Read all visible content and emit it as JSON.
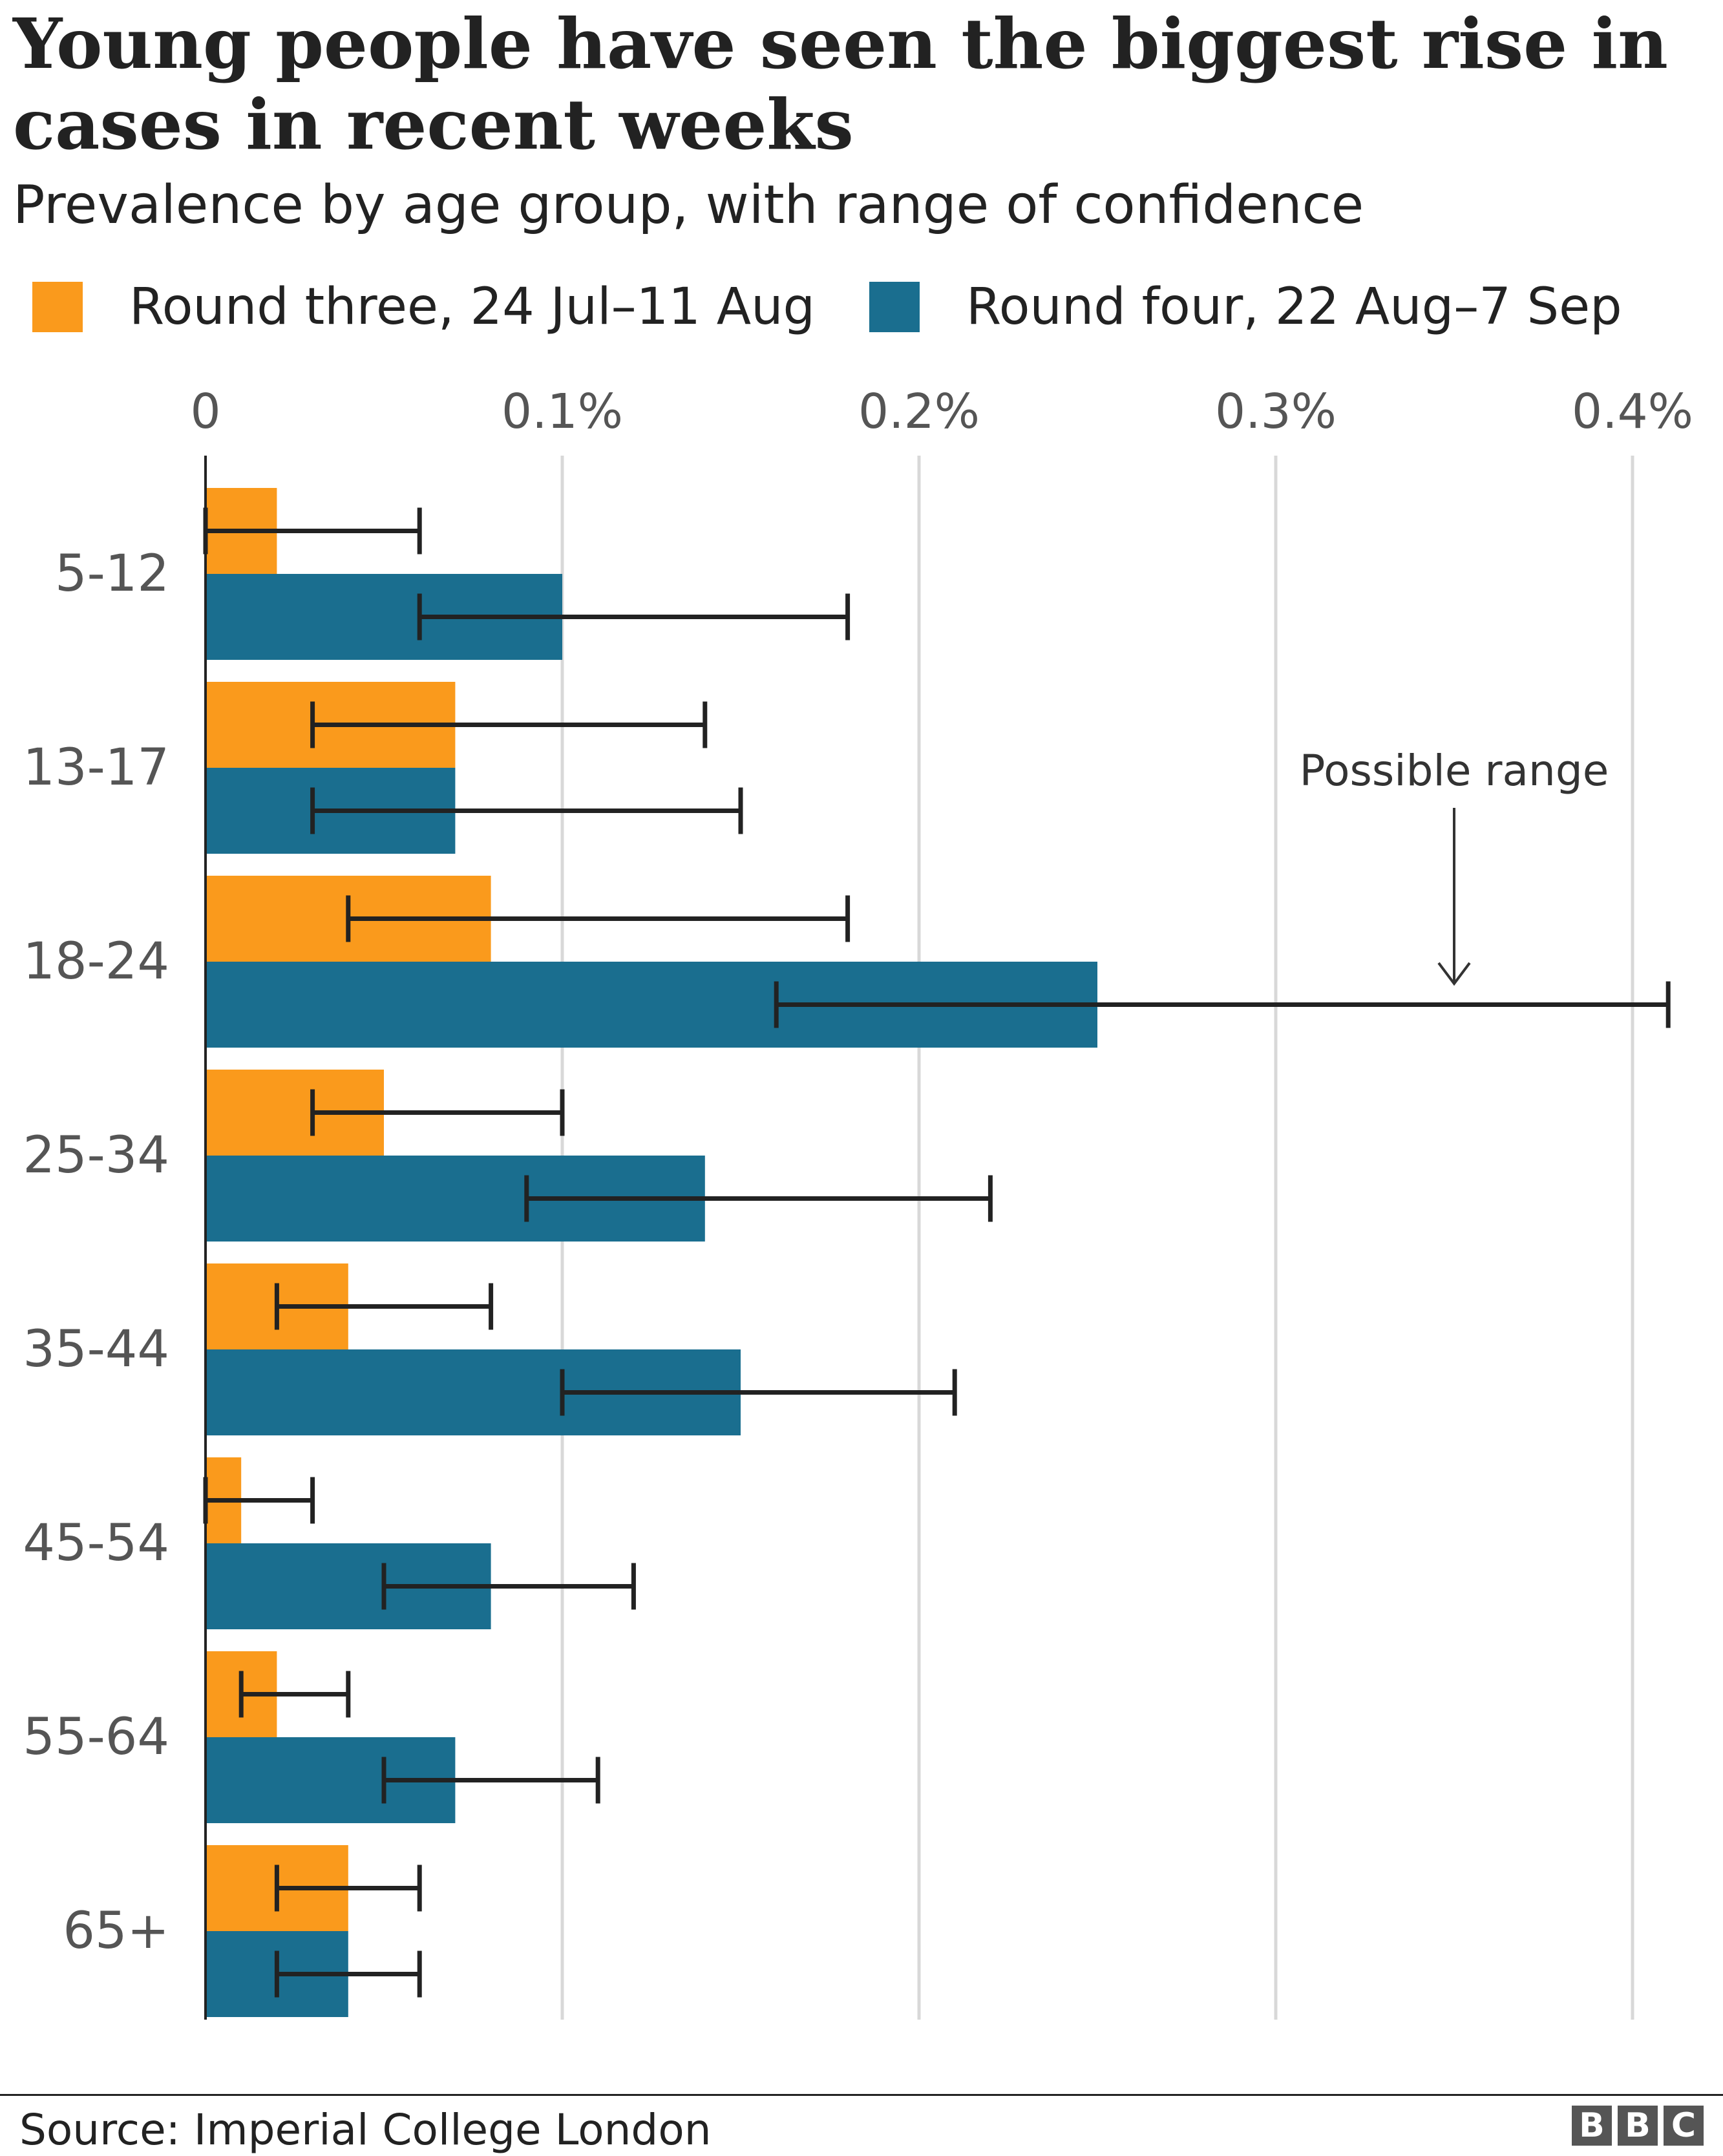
{
  "title": "Young people have seen the biggest rise in cases in recent weeks",
  "subtitle": "Prevalence by age group, with range of confidence",
  "legend": {
    "round_three": "Round three, 24 Jul–11 Aug",
    "round_four": "Round four, 22 Aug–7 Sep"
  },
  "colors": {
    "round_three": "#fa9a1c",
    "round_four": "#1a6e8f",
    "error_bar": "#222222",
    "grid": "#d8d8d8",
    "text": "#222222",
    "axis_text": "#555555"
  },
  "annotation": "Possible range",
  "source": "Source: Imperial College London",
  "logo": "BBC",
  "chart_data": {
    "type": "bar",
    "orientation": "horizontal",
    "title": "Young people have seen the biggest rise in cases in recent weeks",
    "subtitle": "Prevalence by age group, with range of confidence",
    "xlim": [
      0,
      0.4
    ],
    "xticks": [
      0,
      0.1,
      0.2,
      0.3,
      0.4
    ],
    "xtick_labels": [
      "0",
      "0.1%",
      "0.2%",
      "0.3%",
      "0.4%"
    ],
    "grid": true,
    "legend_position": "top",
    "categories": [
      "5-12",
      "13-17",
      "18-24",
      "25-34",
      "35-44",
      "45-54",
      "55-64",
      "65+"
    ],
    "series": [
      {
        "name": "Round three, 24 Jul–11 Aug",
        "values": [
          0.02,
          0.07,
          0.08,
          0.05,
          0.04,
          0.01,
          0.02,
          0.04
        ],
        "ci_low": [
          0.0,
          0.03,
          0.04,
          0.03,
          0.02,
          0.0,
          0.01,
          0.02
        ],
        "ci_high": [
          0.06,
          0.14,
          0.18,
          0.1,
          0.08,
          0.03,
          0.04,
          0.06
        ]
      },
      {
        "name": "Round four, 22 Aug–7 Sep",
        "values": [
          0.1,
          0.07,
          0.25,
          0.14,
          0.15,
          0.08,
          0.07,
          0.04
        ],
        "ci_low": [
          0.06,
          0.03,
          0.16,
          0.09,
          0.1,
          0.05,
          0.05,
          0.02
        ],
        "ci_high": [
          0.18,
          0.15,
          0.41,
          0.22,
          0.21,
          0.12,
          0.11,
          0.06
        ]
      }
    ]
  }
}
